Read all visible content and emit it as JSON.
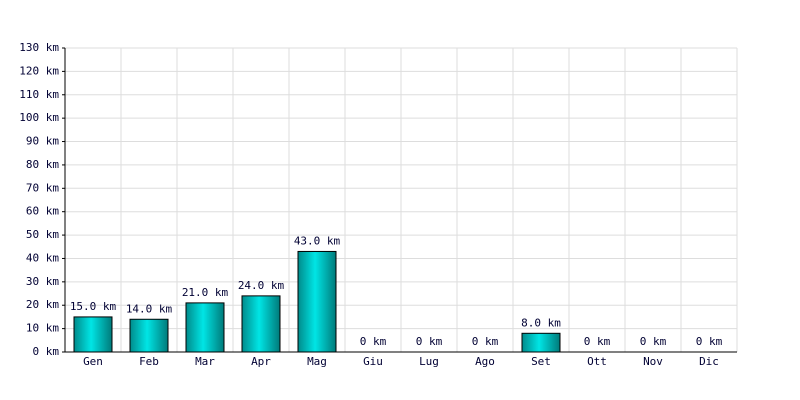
{
  "chart_data": {
    "type": "bar",
    "categories": [
      "Gen",
      "Feb",
      "Mar",
      "Apr",
      "Mag",
      "Giu",
      "Lug",
      "Ago",
      "Set",
      "Ott",
      "Nov",
      "Dic"
    ],
    "values": [
      15,
      14,
      21,
      24,
      43,
      0,
      0,
      0,
      8,
      0,
      0,
      0
    ],
    "value_labels": [
      "15.0 km",
      "14.0 km",
      "21.0 km",
      "24.0 km",
      "43.0 km",
      "0 km",
      "0 km",
      "0 km",
      "8.0 km",
      "0 km",
      "0 km",
      "0 km"
    ],
    "color": "#00cccc",
    "ylim": [
      0,
      130
    ],
    "yticks": [
      {
        "value": 0,
        "label": "0 km"
      },
      {
        "value": 10,
        "label": "10 km"
      },
      {
        "value": 20,
        "label": "20 km"
      },
      {
        "value": 30,
        "label": "30 km"
      },
      {
        "value": 40,
        "label": "40 km"
      },
      {
        "value": 50,
        "label": "50 km"
      },
      {
        "value": 60,
        "label": "60 km"
      },
      {
        "value": 70,
        "label": "70 km"
      },
      {
        "value": 80,
        "label": "80 km"
      },
      {
        "value": 90,
        "label": "90 km"
      },
      {
        "value": 100,
        "label": "100 km"
      },
      {
        "value": 110,
        "label": "110 km"
      },
      {
        "value": 120,
        "label": "120 km"
      },
      {
        "value": 130,
        "label": "130 km"
      }
    ],
    "grid": true
  }
}
